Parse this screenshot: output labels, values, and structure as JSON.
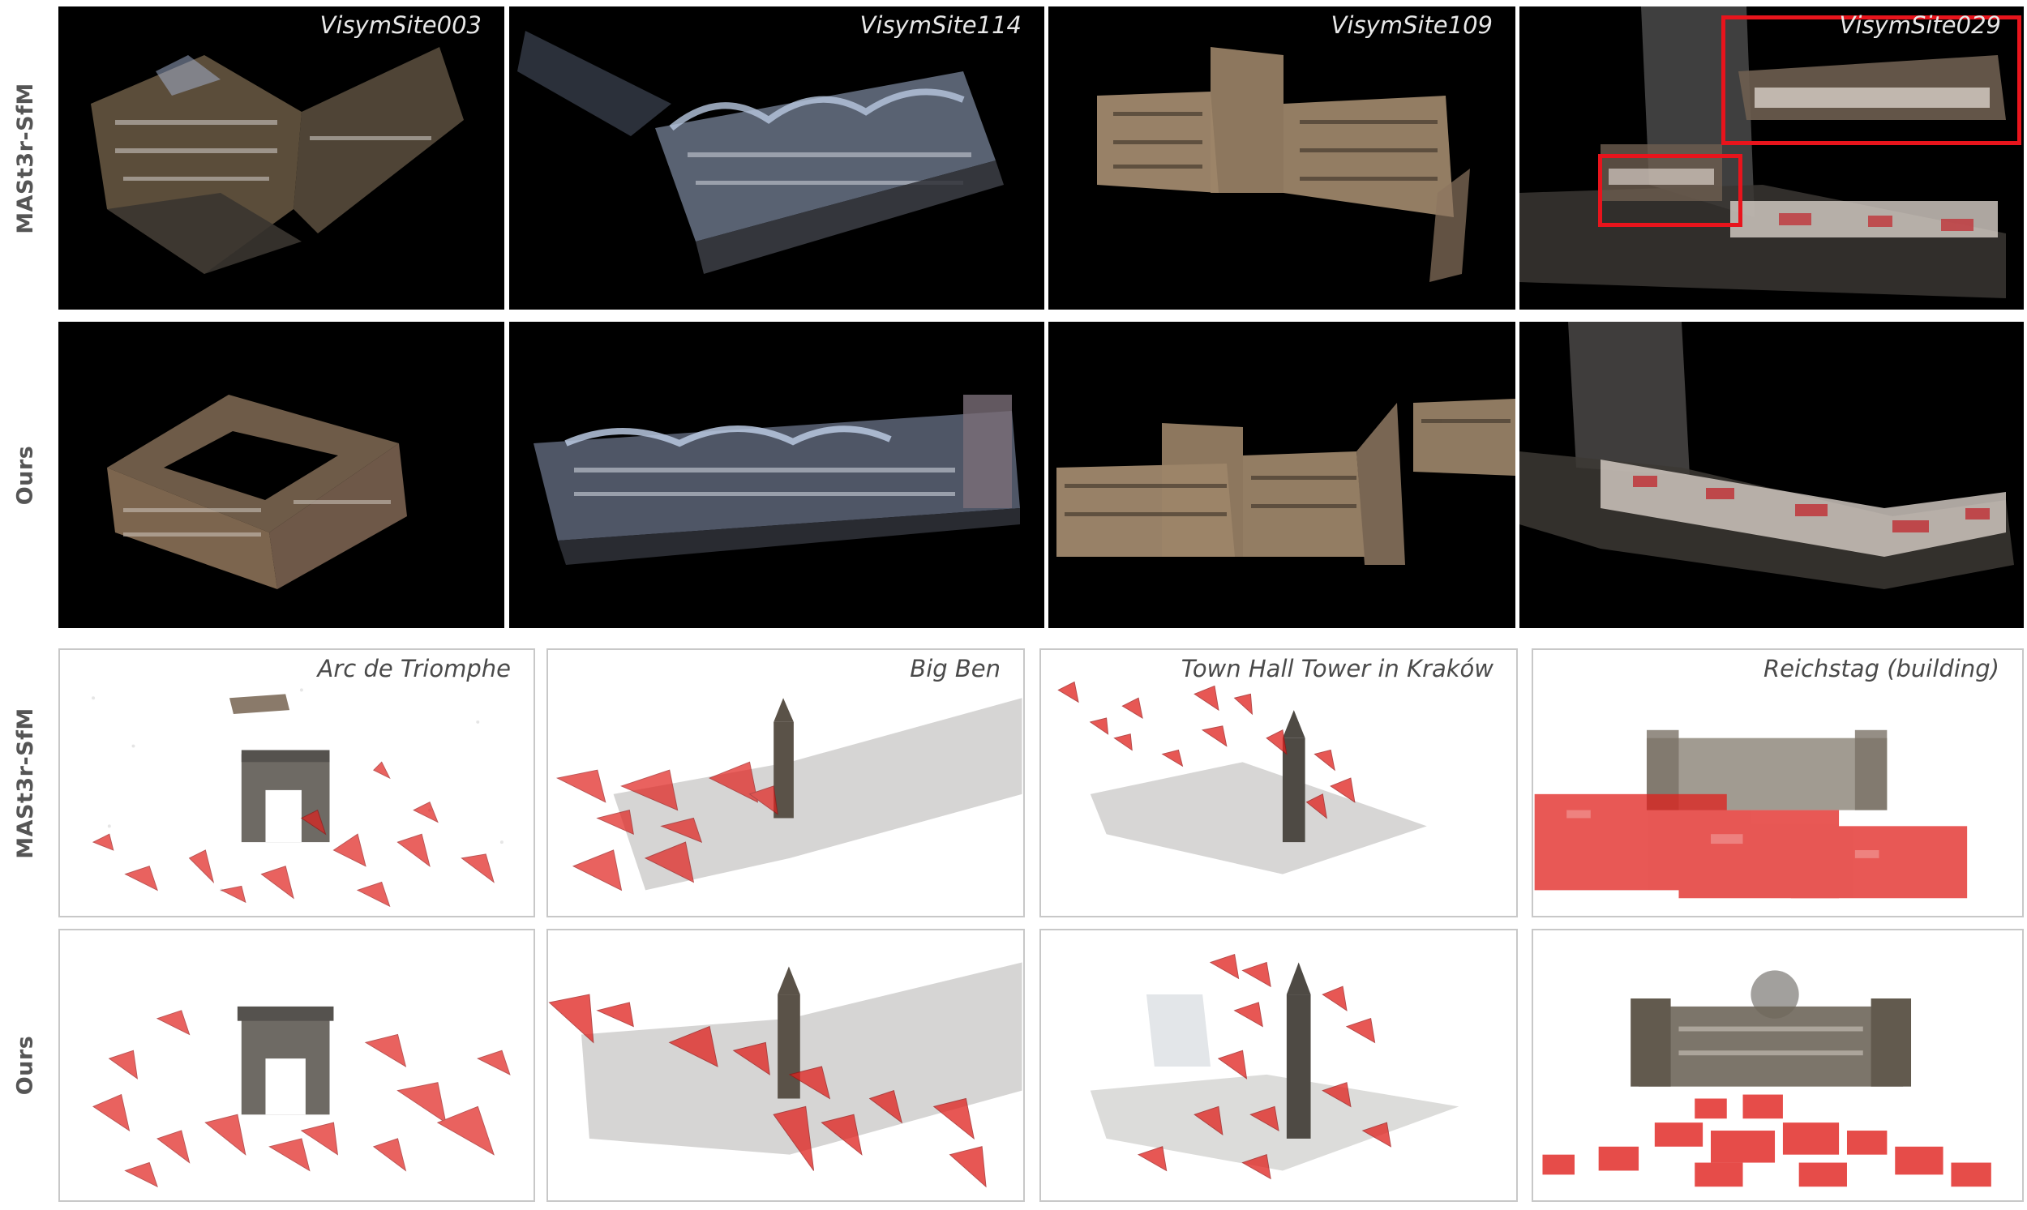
{
  "rows": {
    "top_mast3r": "MASt3r-SfM",
    "top_ours": "Ours",
    "bottom_mast3r": "MASt3r-SfM",
    "bottom_ours": "Ours"
  },
  "scenes": {
    "visym": [
      "VisymSite003",
      "VisymSite114",
      "VisymSite109",
      "VisymSite029"
    ],
    "landmarks": [
      "Arc de Triomphe",
      "Big Ben",
      "Town Hall Tower in Kraków",
      "Reichstag (building)"
    ]
  },
  "colors": {
    "camera_red": "#e0201c",
    "highlight_box": "#e8141c",
    "label_gray": "#555555"
  }
}
